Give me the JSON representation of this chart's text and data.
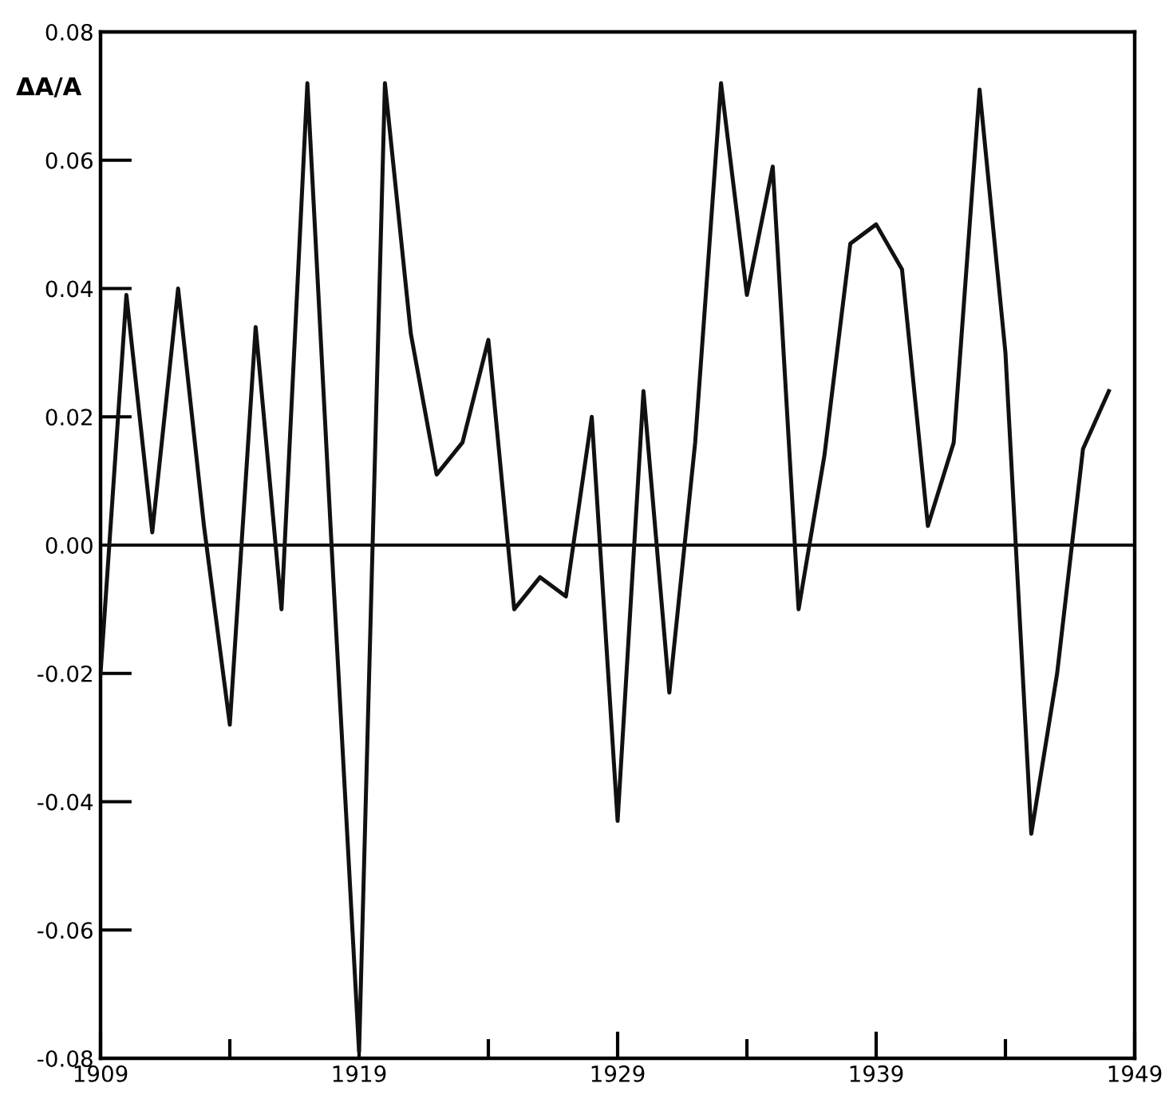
{
  "chart_data": {
    "type": "line",
    "ylabel": "ΔA/A",
    "x": [
      1909,
      1910,
      1911,
      1912,
      1913,
      1914,
      1915,
      1916,
      1917,
      1918,
      1919,
      1920,
      1921,
      1922,
      1923,
      1924,
      1925,
      1926,
      1927,
      1928,
      1929,
      1930,
      1931,
      1932,
      1933,
      1934,
      1935,
      1936,
      1937,
      1938,
      1939,
      1940,
      1941,
      1942,
      1943,
      1944,
      1945,
      1946,
      1947,
      1948
    ],
    "series": [
      {
        "color": "#111111",
        "values": [
          -0.02,
          0.039,
          0.002,
          0.04,
          0.003,
          -0.028,
          0.034,
          -0.01,
          0.072,
          -0.005,
          -0.079,
          0.072,
          0.033,
          0.011,
          0.016,
          0.032,
          -0.01,
          -0.005,
          -0.008,
          0.02,
          -0.043,
          0.024,
          -0.023,
          0.016,
          0.072,
          0.039,
          0.059,
          -0.01,
          0.014,
          0.047,
          0.05,
          0.043,
          0.003,
          0.016,
          0.071,
          0.03,
          -0.045,
          -0.02,
          0.015,
          0.024
        ]
      }
    ],
    "xlim": [
      1909,
      1949
    ],
    "xticks": [
      1909,
      {
        "value": 1914,
        "label": null
      },
      1919,
      {
        "value": 1924,
        "label": null
      },
      1929,
      {
        "value": 1934,
        "label": null
      },
      1939,
      {
        "value": 1944,
        "label": null
      },
      1949
    ],
    "ylim": [
      -0.08,
      0.08
    ],
    "yticks": [
      {
        "value": -0.08,
        "label": "-0.08"
      },
      {
        "value": -0.06,
        "label": "-0.06"
      },
      {
        "value": -0.04,
        "label": "-0.04"
      },
      {
        "value": -0.02,
        "label": "-0.02"
      },
      {
        "value": 0.0,
        "label": "0.00"
      },
      {
        "value": 0.02,
        "label": "0.02"
      },
      {
        "value": 0.04,
        "label": "0.04"
      },
      {
        "value": 0.06,
        "label": "0.06"
      },
      {
        "value": 0.08,
        "label": "0.08"
      }
    ],
    "ref_lines": [
      {
        "axis": "y",
        "value": 0,
        "color": "#111111"
      }
    ],
    "line_style": "solid"
  }
}
